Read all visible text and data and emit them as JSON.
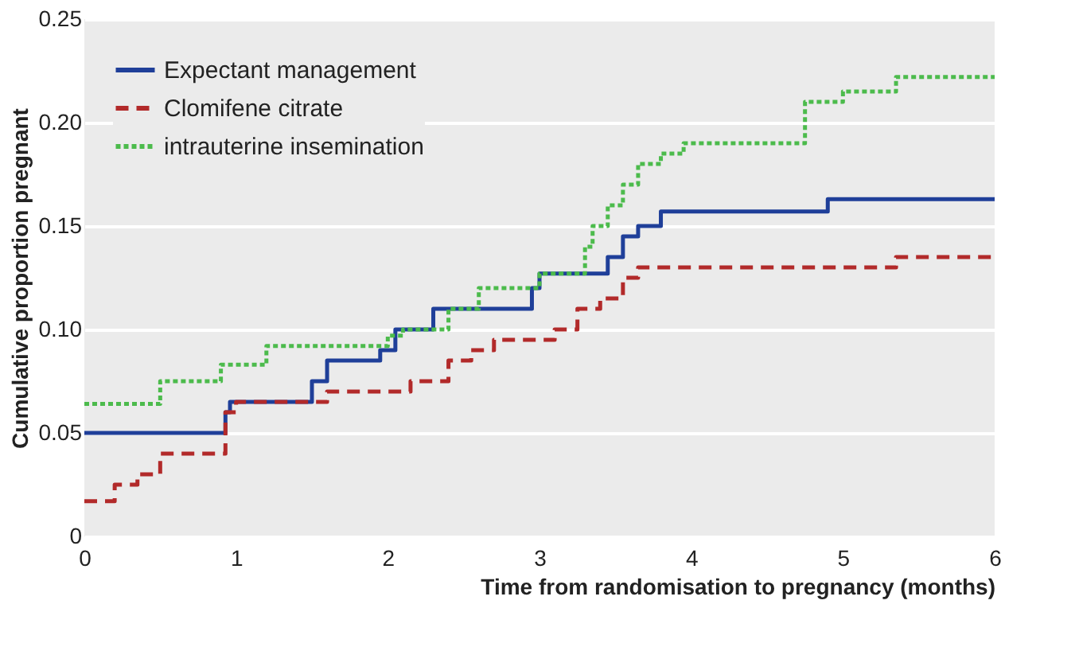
{
  "chart_data": {
    "type": "step",
    "xlabel": "Time from randomisation to pregnancy (months)",
    "ylabel": "Cumulative proportion pregnant",
    "xlim": [
      0,
      6
    ],
    "xticks": [
      0,
      1,
      2,
      3,
      4,
      5,
      6
    ],
    "ylim": [
      0,
      0.25
    ],
    "yticks": [
      0,
      0.05,
      {
        "value": 0.1,
        "label": "0.10"
      },
      0.15,
      {
        "value": 0.2,
        "label": "0.20"
      },
      0.25
    ],
    "grid": "y",
    "legend": "top left",
    "series": [
      {
        "name": "Expectant management",
        "color": "#1f3f99",
        "line_style": "solid",
        "x": [
          0,
          0.93,
          0.96,
          1.5,
          1.6,
          1.95,
          2.05,
          2.3,
          2.95,
          3.0,
          3.45,
          3.55,
          3.65,
          3.8,
          4.9,
          6
        ],
        "values": [
          0.05,
          0.06,
          0.065,
          0.075,
          0.085,
          0.09,
          0.1,
          0.11,
          0.12,
          0.127,
          0.135,
          0.145,
          0.15,
          0.157,
          0.163,
          0.163
        ]
      },
      {
        "name": "Clomifene citrate",
        "color": "#b22a2a",
        "line_style": "dashed",
        "x": [
          0,
          0.2,
          0.35,
          0.5,
          0.93,
          1.0,
          1.6,
          2.15,
          2.4,
          2.55,
          2.7,
          3.1,
          3.25,
          3.4,
          3.55,
          3.65,
          5.35,
          6
        ],
        "values": [
          0.017,
          0.025,
          0.03,
          0.04,
          0.06,
          0.065,
          0.07,
          0.075,
          0.085,
          0.09,
          0.095,
          0.1,
          0.11,
          0.115,
          0.125,
          0.13,
          0.135,
          0.135
        ]
      },
      {
        "name": "intrauterine insemination",
        "color": "#4cbb4c",
        "line_style": "dotted",
        "x": [
          0,
          0.5,
          0.9,
          1.2,
          2.0,
          2.1,
          2.4,
          2.6,
          3.0,
          3.3,
          3.35,
          3.45,
          3.55,
          3.65,
          3.8,
          3.95,
          4.75,
          5.0,
          5.35,
          6
        ],
        "values": [
          0.064,
          0.075,
          0.083,
          0.092,
          0.097,
          0.1,
          0.11,
          0.12,
          0.127,
          0.14,
          0.15,
          0.16,
          0.17,
          0.18,
          0.185,
          0.19,
          0.21,
          0.215,
          0.222,
          0.222
        ]
      }
    ]
  }
}
